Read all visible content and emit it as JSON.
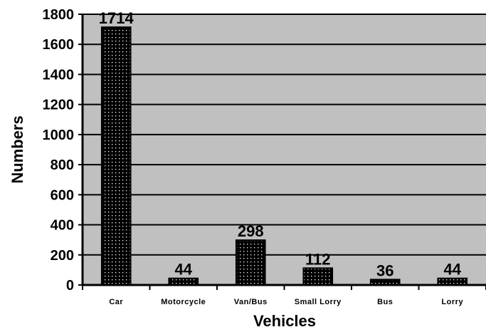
{
  "chart_data": {
    "type": "bar",
    "title": "",
    "xlabel": "Vehicles",
    "ylabel": "Numbers",
    "categories": [
      "Car",
      "Motorcycle",
      "Van/Bus",
      "Small Lorry",
      "Bus",
      "Lorry"
    ],
    "values": [
      1714,
      44,
      298,
      112,
      36,
      44
    ],
    "data_labels": [
      "1714",
      "44",
      "298",
      "112",
      "36",
      "44"
    ],
    "ylim": [
      0,
      1800
    ],
    "yticks": [
      0,
      200,
      400,
      600,
      800,
      1000,
      1200,
      1400,
      1600,
      1800
    ],
    "ytick_labels": [
      "0",
      "200",
      "400",
      "600",
      "800",
      "1000",
      "1200",
      "1400",
      "1600",
      "1800"
    ],
    "grid": true,
    "legend": "none",
    "colors": {
      "plot_background": "#c0c0c0",
      "bar_fill": "#000000",
      "bar_dots": "#ffffff",
      "gridline": "#000000",
      "page_background": "#ffffff"
    }
  }
}
